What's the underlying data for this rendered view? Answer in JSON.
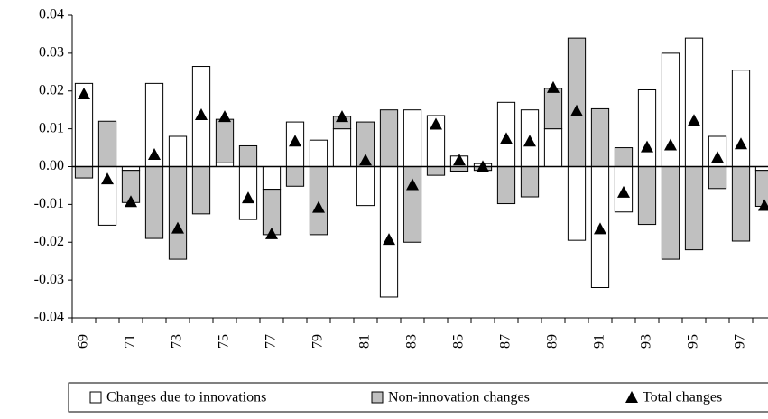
{
  "chart_data": {
    "type": "bar",
    "stacked": true,
    "categories": [
      "69",
      null,
      "71",
      null,
      "73",
      null,
      "75",
      null,
      "77",
      null,
      "79",
      null,
      "81",
      null,
      "83",
      null,
      "85",
      null,
      "87",
      null,
      "89",
      null,
      "91",
      null,
      "93",
      null,
      "95",
      null,
      "97",
      null
    ],
    "series": [
      {
        "name": "Changes due to innovations",
        "color": "#ffffff",
        "kind": "bar",
        "values": [
          0.022,
          -0.0155,
          -0.001,
          0.022,
          0.008,
          0.0265,
          0.001,
          -0.014,
          -0.006,
          0.0118,
          0.007,
          0.01,
          -0.0103,
          -0.0345,
          0.015,
          0.0135,
          0.0028,
          0.0008,
          0.017,
          0.015,
          0.01,
          -0.0195,
          -0.032,
          -0.012,
          0.0203,
          0.03,
          0.034,
          0.008,
          0.0255,
          -0.001
        ]
      },
      {
        "name": "Non-innovation changes",
        "color": "#c0c0c0",
        "kind": "bar",
        "values": [
          -0.003,
          0.012,
          -0.0085,
          -0.019,
          -0.0245,
          -0.0125,
          0.0115,
          0.0055,
          -0.012,
          -0.0052,
          -0.018,
          0.0033,
          0.0118,
          0.015,
          -0.02,
          -0.0023,
          -0.0012,
          -0.001,
          -0.0098,
          -0.008,
          0.0107,
          0.034,
          0.0153,
          0.005,
          -0.0153,
          -0.0245,
          -0.022,
          -0.0058,
          -0.0197,
          -0.0095
        ]
      },
      {
        "name": "Total changes",
        "color": "#000000",
        "kind": "marker",
        "values": [
          0.019,
          -0.0035,
          -0.0095,
          0.003,
          -0.0165,
          0.0135,
          0.013,
          -0.0085,
          -0.018,
          0.0065,
          -0.011,
          0.013,
          0.0015,
          -0.0195,
          -0.005,
          0.011,
          0.0015,
          -0.0002,
          0.0072,
          0.0065,
          0.0207,
          0.0145,
          -0.0167,
          -0.007,
          0.005,
          0.0055,
          0.012,
          0.0022,
          0.0058,
          -0.0105
        ]
      }
    ],
    "ylim": [
      -0.04,
      0.04
    ],
    "yticks": [
      -0.04,
      -0.03,
      -0.02,
      -0.01,
      {
        "value": 0,
        "label": "0.00"
      },
      0.01,
      0.02,
      0.03,
      0.04
    ],
    "legend": "bottom",
    "grid": false
  }
}
